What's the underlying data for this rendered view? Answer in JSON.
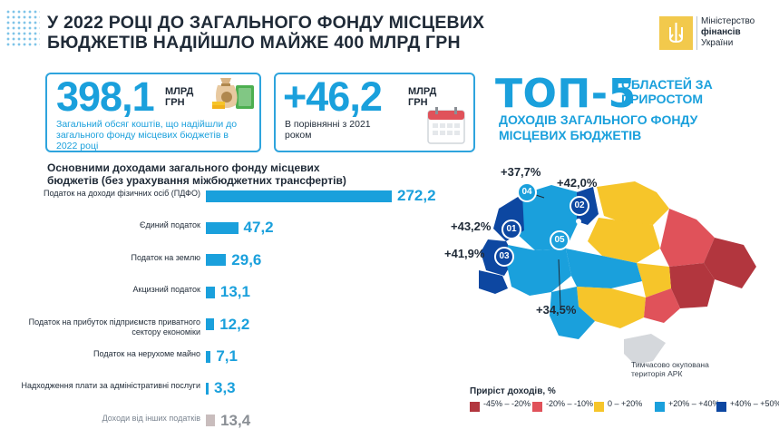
{
  "header": {
    "title": "У 2022 РОЦІ ДО ЗАГАЛЬНОГО ФОНДУ МІСЦЕВИХ БЮДЖЕТІВ НАДІЙШЛО МАЙЖЕ 400 МЛРД ГРН",
    "logo_line1": "Міністерство",
    "logo_line2": "фінансів",
    "logo_line3": "України"
  },
  "card_total": {
    "value": "398,1",
    "unit_line1": "МЛРД",
    "unit_line2": "ГРН",
    "description": "Загальний обсяг коштів, що надійшли до загального фонду місцевих бюджетів в 2022 році",
    "icon": "money-bag-icon"
  },
  "card_growth": {
    "value": "+46,2",
    "unit_line1": "МЛРД",
    "unit_line2": "ГРН",
    "description": "В порівнянні з 2021 роком",
    "icon": "calendar-icon"
  },
  "top5": {
    "big": "ТОП-5",
    "small": "ОБЛАСТЕЙ ЗА ПРИРОСТОМ",
    "subtitle": "ДОХОДІВ ЗАГАЛЬНОГО ФОНДУ МІСЦЕВИХ БЮДЖЕТІВ"
  },
  "chart_data": {
    "type": "bar",
    "title": "Основними доходами загального фонду місцевих бюджетів (без урахування міжбюджетних трансфертів)",
    "orientation": "horizontal",
    "categories": [
      "Податок на доходи фізичних осіб (ПДФО)",
      "Єдиний податок",
      "Податок на землю",
      "Акцизний податок",
      "Податок на прибуток підприємств приватного сектору економіки",
      "Податок на нерухоме майно",
      "Надходження плати за адміністративні послуги",
      "Доходи від інших податків"
    ],
    "values": [
      272.2,
      47.2,
      29.6,
      13.1,
      12.2,
      7.1,
      3.3,
      13.4
    ],
    "value_labels": [
      "272,2",
      "47,2",
      "29,6",
      "13,1",
      "12,2",
      "7,1",
      "3,3",
      "13,4"
    ],
    "colors": [
      "#1aa0dc",
      "#1aa0dc",
      "#1aa0dc",
      "#1aa0dc",
      "#1aa0dc",
      "#1aa0dc",
      "#1aa0dc",
      "#c9bdbd"
    ],
    "xlim": [
      0,
      272.2
    ]
  },
  "map": {
    "callouts": [
      {
        "rank": "01",
        "growth": "+43,2%"
      },
      {
        "rank": "02",
        "growth": "+42,0%"
      },
      {
        "rank": "03",
        "growth": "+41,9%"
      },
      {
        "rank": "04",
        "growth": "+37,7%"
      },
      {
        "rank": "05",
        "growth": "+34,5%"
      }
    ],
    "occupied_note": "Тимчасово окупована територія АРК",
    "legend_title": "Приріст доходів, %",
    "legend": [
      {
        "label": "-45% – -20%",
        "color": "#b2363e"
      },
      {
        "label": "-20% – -10%",
        "color": "#e0525a"
      },
      {
        "label": "0 – +20%",
        "color": "#f6c52a"
      },
      {
        "label": "+20% – +40%",
        "color": "#1aa0dc"
      },
      {
        "label": "+40% – +50%",
        "color": "#0d47a1"
      }
    ]
  }
}
